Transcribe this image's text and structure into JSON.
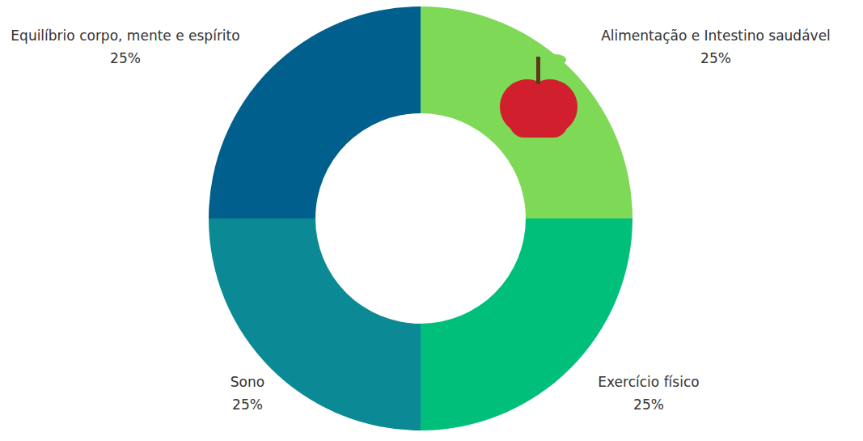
{
  "chart_data": {
    "type": "pie",
    "categories": [
      "Alimentação e Intestino saudável",
      "Exercício físico",
      "Sono",
      "Equilíbrio corpo, mente e espírito"
    ],
    "values": [
      25,
      25,
      25,
      25
    ],
    "value_labels": [
      "25%",
      "25%",
      "25%",
      "25%"
    ],
    "colors": [
      "#7ed957",
      "#00bf7a",
      "#0b8a96",
      "#005f8d"
    ],
    "data_labels": true
  }
}
